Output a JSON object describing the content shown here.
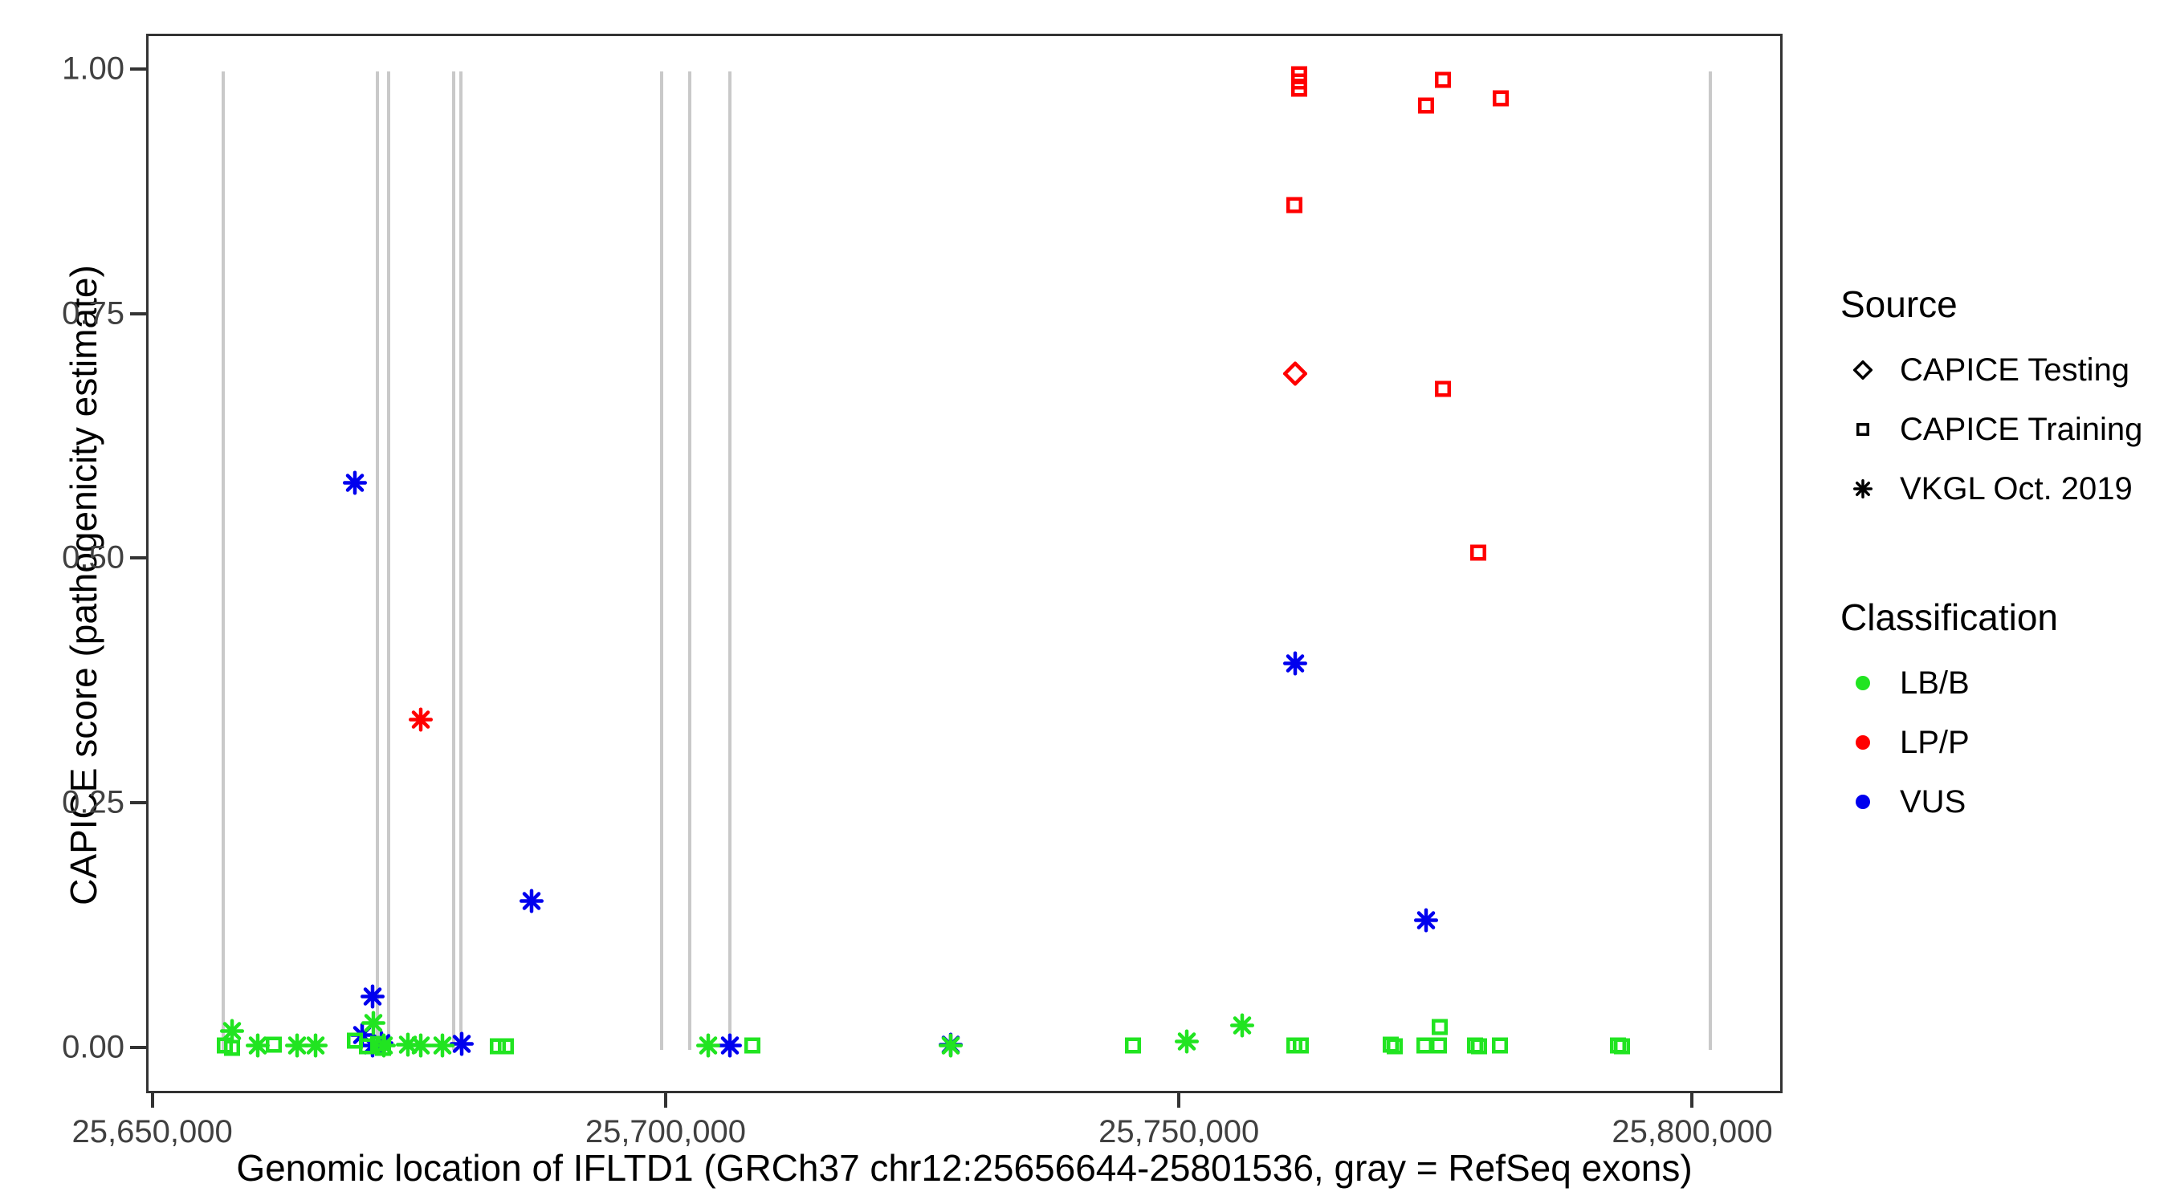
{
  "y_axis": {
    "title": "CAPICE score (pathogenicity estimate)",
    "ticks": [
      0.0,
      0.25,
      0.5,
      0.75,
      1.0
    ],
    "range": [
      -0.047,
      1.036
    ]
  },
  "x_axis": {
    "title": "Genomic location of IFLTD1 (GRCh37 chr12:25656644-25801536, gray = RefSeq exons)",
    "ticks": [
      {
        "value": 25650000,
        "label": "25,650,000"
      },
      {
        "value": 25700000,
        "label": "25,700,000"
      },
      {
        "value": 25750000,
        "label": "25,750,000"
      },
      {
        "value": 25800000,
        "label": "25,800,000"
      }
    ],
    "range": [
      25649400,
      25808800
    ]
  },
  "legend": {
    "source": {
      "title": "Source",
      "items": [
        {
          "shape": "diamond",
          "label": "CAPICE Testing"
        },
        {
          "shape": "square",
          "label": "CAPICE Training"
        },
        {
          "shape": "asterisk",
          "label": "VKGL Oct. 2019"
        }
      ]
    },
    "classification": {
      "title": "Classification",
      "items": [
        {
          "class": "LB/B",
          "label": "LB/B",
          "color": "#21e421"
        },
        {
          "class": "LP/P",
          "label": "LP/P",
          "color": "#ff0000"
        },
        {
          "class": "VUS",
          "label": "VUS",
          "color": "#0000ee"
        }
      ]
    }
  },
  "colors": {
    "LB/B": "#21e421",
    "LP/P": "#ff0000",
    "VUS": "#0000ee",
    "exon": "#c9c9c9"
  },
  "chart_data": {
    "type": "scatter",
    "title": "",
    "xlabel": "Genomic location of IFLTD1 (GRCh37 chr12:25656644-25801536, gray = RefSeq exons)",
    "ylabel": "CAPICE score (pathogenicity estimate)",
    "xlim": [
      25649400,
      25808800
    ],
    "ylim": [
      -0.047,
      1.036
    ],
    "grid": false,
    "legend_position": "right",
    "gene": {
      "name": "IFLTD1",
      "assembly": "GRCh37",
      "chromosome": "chr12",
      "start": 25656644,
      "end": 25801536
    },
    "exon_positions": [
      25656700,
      25671700,
      25672750,
      25679150,
      25679800,
      25699400,
      25702100,
      25706000,
      25801500
    ],
    "points": [
      {
        "x": 25761500,
        "y": 0.995,
        "source": "CAPICE Training",
        "classification": "LP/P"
      },
      {
        "x": 25761500,
        "y": 0.988,
        "source": "CAPICE Training",
        "classification": "LP/P"
      },
      {
        "x": 25761500,
        "y": 0.98,
        "source": "CAPICE Training",
        "classification": "LP/P"
      },
      {
        "x": 25775500,
        "y": 0.989,
        "source": "CAPICE Training",
        "classification": "LP/P"
      },
      {
        "x": 25773800,
        "y": 0.963,
        "source": "CAPICE Training",
        "classification": "LP/P"
      },
      {
        "x": 25781100,
        "y": 0.97,
        "source": "CAPICE Training",
        "classification": "LP/P"
      },
      {
        "x": 25761000,
        "y": 0.861,
        "source": "CAPICE Training",
        "classification": "LP/P"
      },
      {
        "x": 25761100,
        "y": 0.689,
        "source": "CAPICE Testing",
        "classification": "LP/P"
      },
      {
        "x": 25775500,
        "y": 0.673,
        "source": "CAPICE Training",
        "classification": "LP/P"
      },
      {
        "x": 25778900,
        "y": 0.506,
        "source": "CAPICE Training",
        "classification": "LP/P"
      },
      {
        "x": 25675900,
        "y": 0.335,
        "source": "VKGL Oct. 2019",
        "classification": "LP/P"
      },
      {
        "x": 25669500,
        "y": 0.577,
        "source": "VKGL Oct. 2019",
        "classification": "VUS"
      },
      {
        "x": 25761100,
        "y": 0.393,
        "source": "VKGL Oct. 2019",
        "classification": "VUS"
      },
      {
        "x": 25686700,
        "y": 0.15,
        "source": "VKGL Oct. 2019",
        "classification": "VUS"
      },
      {
        "x": 25773800,
        "y": 0.13,
        "source": "VKGL Oct. 2019",
        "classification": "VUS"
      },
      {
        "x": 25671200,
        "y": 0.052,
        "source": "VKGL Oct. 2019",
        "classification": "VUS"
      },
      {
        "x": 25670200,
        "y": 0.013,
        "source": "VKGL Oct. 2019",
        "classification": "VUS"
      },
      {
        "x": 25671200,
        "y": 0.002,
        "source": "VKGL Oct. 2019",
        "classification": "VUS"
      },
      {
        "x": 25672100,
        "y": 0.005,
        "source": "VKGL Oct. 2019",
        "classification": "VUS"
      },
      {
        "x": 25679900,
        "y": 0.004,
        "source": "VKGL Oct. 2019",
        "classification": "VUS"
      },
      {
        "x": 25706000,
        "y": 0.002,
        "source": "VKGL Oct. 2019",
        "classification": "VUS"
      },
      {
        "x": 25727500,
        "y": 0.003,
        "source": "VKGL Oct. 2019",
        "classification": "VUS"
      },
      {
        "x": 25657500,
        "y": 0.017,
        "source": "VKGL Oct. 2019",
        "classification": "LB/B"
      },
      {
        "x": 25660000,
        "y": 0.002,
        "source": "VKGL Oct. 2019",
        "classification": "LB/B"
      },
      {
        "x": 25663900,
        "y": 0.002,
        "source": "VKGL Oct. 2019",
        "classification": "LB/B"
      },
      {
        "x": 25665700,
        "y": 0.002,
        "source": "VKGL Oct. 2019",
        "classification": "LB/B"
      },
      {
        "x": 25671300,
        "y": 0.025,
        "source": "VKGL Oct. 2019",
        "classification": "LB/B"
      },
      {
        "x": 25672300,
        "y": 0.002,
        "source": "VKGL Oct. 2019",
        "classification": "LB/B"
      },
      {
        "x": 25674700,
        "y": 0.003,
        "source": "VKGL Oct. 2019",
        "classification": "LB/B"
      },
      {
        "x": 25675900,
        "y": 0.002,
        "source": "VKGL Oct. 2019",
        "classification": "LB/B"
      },
      {
        "x": 25678000,
        "y": 0.002,
        "source": "VKGL Oct. 2019",
        "classification": "LB/B"
      },
      {
        "x": 25703900,
        "y": 0.002,
        "source": "VKGL Oct. 2019",
        "classification": "LB/B"
      },
      {
        "x": 25727500,
        "y": 0.002,
        "source": "VKGL Oct. 2019",
        "classification": "LB/B"
      },
      {
        "x": 25750500,
        "y": 0.006,
        "source": "VKGL Oct. 2019",
        "classification": "LB/B"
      },
      {
        "x": 25755900,
        "y": 0.023,
        "source": "VKGL Oct. 2019",
        "classification": "LB/B"
      },
      {
        "x": 25656800,
        "y": 0.002,
        "source": "CAPICE Training",
        "classification": "LB/B"
      },
      {
        "x": 25657500,
        "y": 0.0,
        "source": "CAPICE Training",
        "classification": "LB/B"
      },
      {
        "x": 25661600,
        "y": 0.003,
        "source": "CAPICE Training",
        "classification": "LB/B"
      },
      {
        "x": 25669500,
        "y": 0.007,
        "source": "CAPICE Training",
        "classification": "LB/B"
      },
      {
        "x": 25670700,
        "y": 0.001,
        "source": "CAPICE Training",
        "classification": "LB/B"
      },
      {
        "x": 25671800,
        "y": 0.004,
        "source": "CAPICE Training",
        "classification": "LB/B"
      },
      {
        "x": 25672200,
        "y": 0.0,
        "source": "CAPICE Training",
        "classification": "LB/B"
      },
      {
        "x": 25683400,
        "y": 0.001,
        "source": "CAPICE Training",
        "classification": "LB/B"
      },
      {
        "x": 25684200,
        "y": 0.001,
        "source": "CAPICE Training",
        "classification": "LB/B"
      },
      {
        "x": 25708200,
        "y": 0.002,
        "source": "CAPICE Training",
        "classification": "LB/B"
      },
      {
        "x": 25745300,
        "y": 0.002,
        "source": "CAPICE Training",
        "classification": "LB/B"
      },
      {
        "x": 25761000,
        "y": 0.002,
        "source": "CAPICE Training",
        "classification": "LB/B"
      },
      {
        "x": 25761600,
        "y": 0.002,
        "source": "CAPICE Training",
        "classification": "LB/B"
      },
      {
        "x": 25770400,
        "y": 0.003,
        "source": "CAPICE Training",
        "classification": "LB/B"
      },
      {
        "x": 25770800,
        "y": 0.001,
        "source": "CAPICE Training",
        "classification": "LB/B"
      },
      {
        "x": 25773700,
        "y": 0.002,
        "source": "CAPICE Training",
        "classification": "LB/B"
      },
      {
        "x": 25775100,
        "y": 0.002,
        "source": "CAPICE Training",
        "classification": "LB/B"
      },
      {
        "x": 25775200,
        "y": 0.021,
        "source": "CAPICE Training",
        "classification": "LB/B"
      },
      {
        "x": 25778600,
        "y": 0.002,
        "source": "CAPICE Training",
        "classification": "LB/B"
      },
      {
        "x": 25779000,
        "y": 0.001,
        "source": "CAPICE Training",
        "classification": "LB/B"
      },
      {
        "x": 25781000,
        "y": 0.002,
        "source": "CAPICE Training",
        "classification": "LB/B"
      },
      {
        "x": 25792500,
        "y": 0.002,
        "source": "CAPICE Training",
        "classification": "LB/B"
      },
      {
        "x": 25792900,
        "y": 0.001,
        "source": "CAPICE Training",
        "classification": "LB/B"
      }
    ]
  }
}
